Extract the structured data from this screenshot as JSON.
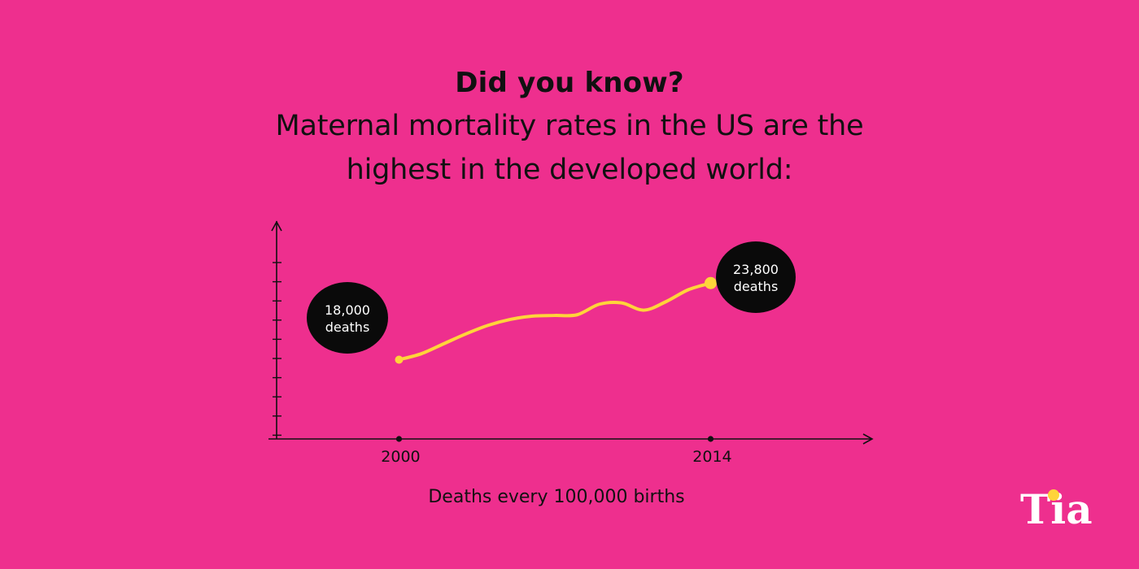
{
  "colors": {
    "background": "#EE2F8E",
    "ink": "#111111",
    "line": "#FFD43A",
    "bubble": "#0A0A0A",
    "bubble_text": "#FFFFFF",
    "logo": "#FFFFFF",
    "logo_dot": "#FFD43A"
  },
  "header": {
    "kicker": "Did you know?",
    "line1": "Maternal mortality rates in the US are the",
    "line2": "highest in the developed world:"
  },
  "chart_data": {
    "type": "line",
    "title": "",
    "xlabel": "Deaths every 100,000 births",
    "ylabel": "",
    "x_ticks": [
      "2000",
      "2014"
    ],
    "xlim": [
      1994.5,
      2021
    ],
    "ylim": [
      12000,
      28000
    ],
    "grid": false,
    "legend": "none",
    "series": [
      {
        "values_x": [
          2000,
          2001,
          2002,
          2003,
          2004,
          2005,
          2006,
          2007,
          2008,
          2009,
          2010,
          2011,
          2012,
          2013,
          2014
        ],
        "values_y": [
          18000,
          18450,
          19200,
          19950,
          20600,
          21050,
          21300,
          21350,
          21400,
          22200,
          22300,
          21750,
          22400,
          23300,
          23800
        ]
      }
    ],
    "annotations": [
      {
        "point": "start",
        "value": "18,000",
        "unit": "deaths"
      },
      {
        "point": "end",
        "value": "23,800",
        "unit": "deaths"
      }
    ]
  },
  "brand": {
    "logo_text": "Tia"
  }
}
